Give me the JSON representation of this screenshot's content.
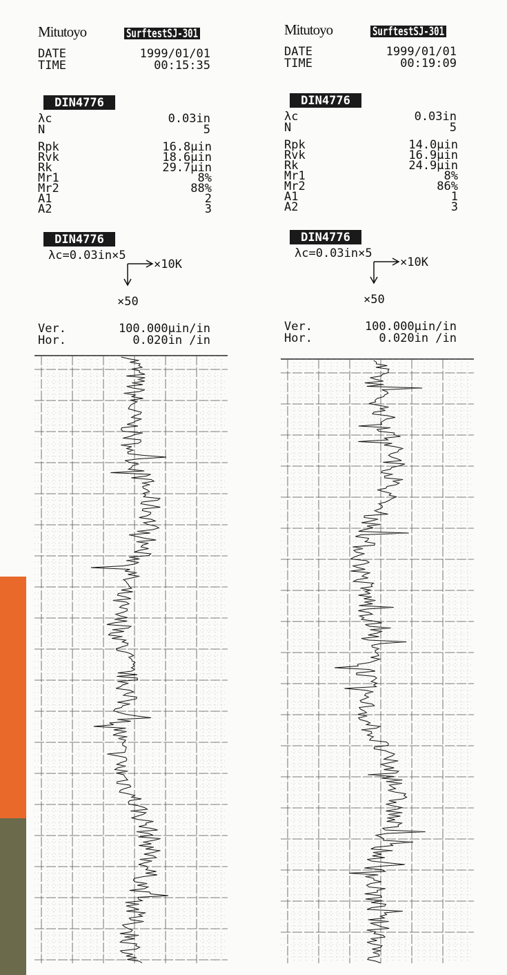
{
  "printouts": [
    {
      "brand": "Mitutoyo",
      "model": "SurftestSJ-301",
      "date_label": "DATE",
      "date": "1999/01/01",
      "time_label": "TIME",
      "time": "00:15:35",
      "standard": "DIN4776",
      "cutoff_label": "λc",
      "cutoff": "0.03in",
      "n_label": "N",
      "n": "5",
      "parameters": [
        {
          "name": "Rpk",
          "value": "16.8μin"
        },
        {
          "name": "Rvk",
          "value": "18.6μin"
        },
        {
          "name": "Rk",
          "value": "29.7μin"
        },
        {
          "name": "Mr1",
          "value": "8%"
        },
        {
          "name": "Mr2",
          "value": "88%"
        },
        {
          "name": "A1",
          "value": "2"
        },
        {
          "name": "A2",
          "value": "3"
        }
      ],
      "graph_standard": "DIN4776",
      "graph_cutoff": "λc=0.03in×5",
      "horizontal_mag": "×10K",
      "vertical_mag": "×50",
      "ver_label": "Ver.",
      "ver_scale": "100.000μin/in",
      "hor_label": "Hor.",
      "hor_scale": "0.020in /in"
    },
    {
      "brand": "Mitutoyo",
      "model": "SurftestSJ-301",
      "date_label": "DATE",
      "date": "1999/01/01",
      "time_label": "TIME",
      "time": "00:19:09",
      "standard": "DIN4776",
      "cutoff_label": "λc",
      "cutoff": "0.03in",
      "n_label": "N",
      "n": "5",
      "parameters": [
        {
          "name": "Rpk",
          "value": "14.0μin"
        },
        {
          "name": "Rvk",
          "value": "16.9μin"
        },
        {
          "name": "Rk",
          "value": "24.9μin"
        },
        {
          "name": "Mr1",
          "value": "8%"
        },
        {
          "name": "Mr2",
          "value": "86%"
        },
        {
          "name": "A1",
          "value": "1"
        },
        {
          "name": "A2",
          "value": "3"
        }
      ],
      "graph_standard": "DIN4776",
      "graph_cutoff": "λc=0.03in×5",
      "horizontal_mag": "×10K",
      "vertical_mag": "×50",
      "ver_label": "Ver.",
      "ver_scale": "100.000μin/in",
      "hor_label": "Hor.",
      "hor_scale": "0.020in /in"
    }
  ]
}
